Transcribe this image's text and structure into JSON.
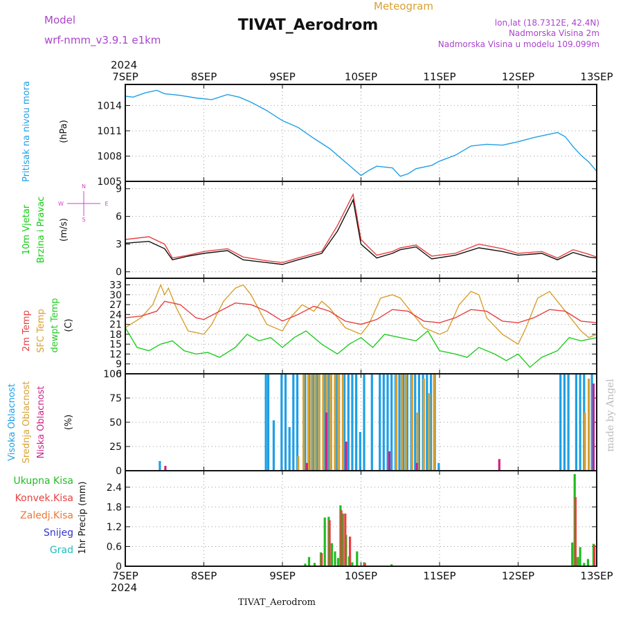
{
  "header": {
    "model_label": "Model",
    "model_name": "wrf-nmm_v3.9.1  e1km",
    "title": "TIVAT_Aerodrom",
    "subtitle": "Meteogram",
    "lonlat": "lon,lat (18.7312E, 42.4N)",
    "elev": "Nadmorska Visina 2m",
    "elev_model": "Nadmorska Visina u modelu 109.099m",
    "watermark": "made by Angel",
    "footer": "TIVAT_Aerodrom"
  },
  "colors": {
    "pressure": "#1e9fe6",
    "wind_label": "#11cc11",
    "wind_dir": "#cc44cc",
    "temp2m": "#e84040",
    "sfc": "#d8a030",
    "dewpt": "#22cc22",
    "high_cloud": "#1e9fe6",
    "mid_cloud": "#d8a030",
    "low_cloud": "#cc2288",
    "total": "#22bb22",
    "conv": "#e84040",
    "frz": "#ee7733",
    "snow": "#3333cc",
    "grad": "#22bbbb",
    "purple": "#aa44cc",
    "watermark": "#bbbbbb"
  },
  "chart_data": {
    "x_axis": {
      "year": "2024",
      "ticks": [
        "7SEP",
        "8SEP",
        "9SEP",
        "10SEP",
        "11SEP",
        "12SEP",
        "13SEP"
      ],
      "range_days": [
        0,
        6
      ]
    },
    "panels": [
      {
        "id": "pressure",
        "type": "line",
        "ylabel": [
          "Pritisak na nivou mora"
        ],
        "unit": "(hPa)",
        "ylim": [
          1005,
          1016.5
        ],
        "yticks": [
          1005,
          1008,
          1011,
          1014
        ],
        "series": [
          {
            "color_key": "pressure",
            "x": [
              0,
              0.1,
              0.25,
              0.4,
              0.5,
              0.7,
              0.9,
              1.1,
              1.3,
              1.45,
              1.6,
              1.8,
              2.0,
              2.2,
              2.4,
              2.6,
              2.8,
              3.0,
              3.1,
              3.2,
              3.4,
              3.5,
              3.6,
              3.7,
              3.9,
              4.0,
              4.2,
              4.4,
              4.6,
              4.8,
              5.0,
              5.2,
              5.4,
              5.5,
              5.6,
              5.7,
              5.8,
              5.9,
              6.0
            ],
            "y": [
              1015.1,
              1015.0,
              1015.5,
              1015.8,
              1015.4,
              1015.2,
              1014.9,
              1014.7,
              1015.3,
              1015.0,
              1014.4,
              1013.4,
              1012.2,
              1011.4,
              1010.1,
              1008.9,
              1007.3,
              1005.7,
              1006.3,
              1006.8,
              1006.6,
              1005.6,
              1005.9,
              1006.5,
              1006.9,
              1007.4,
              1008.1,
              1009.2,
              1009.4,
              1009.3,
              1009.7,
              1010.2,
              1010.6,
              1010.8,
              1010.3,
              1009.1,
              1008.1,
              1007.3,
              1006.2
            ]
          }
        ]
      },
      {
        "id": "wind",
        "type": "line",
        "ylabel": [
          "10m Vjetar",
          "Brzina i Pravac"
        ],
        "unit": "(m/s)",
        "compass": {
          "n": "N",
          "s": "S",
          "e": "E",
          "w": "W"
        },
        "ylim": [
          -0.7,
          9.8
        ],
        "yticks": [
          0,
          3,
          6,
          9
        ],
        "series": [
          {
            "color_key": "temp2m",
            "x": [
              0,
              0.3,
              0.5,
              0.6,
              0.8,
              1.0,
              1.3,
              1.5,
              1.8,
              2.0,
              2.2,
              2.5,
              2.7,
              2.9,
              3.0,
              3.2,
              3.4,
              3.5,
              3.7,
              3.9,
              4.2,
              4.5,
              4.8,
              5.0,
              5.3,
              5.5,
              5.7,
              5.9,
              6.0
            ],
            "y": [
              3.5,
              3.8,
              3.0,
              1.5,
              1.8,
              2.2,
              2.5,
              1.6,
              1.2,
              1.0,
              1.5,
              2.2,
              5.0,
              8.4,
              3.5,
              1.8,
              2.2,
              2.6,
              2.9,
              1.7,
              2.0,
              3.0,
              2.5,
              2.0,
              2.2,
              1.5,
              2.4,
              1.9,
              1.6
            ]
          },
          {
            "color_key": "black",
            "x": [
              0,
              0.3,
              0.5,
              0.6,
              0.8,
              1.0,
              1.3,
              1.5,
              1.8,
              2.0,
              2.2,
              2.5,
              2.7,
              2.9,
              3.0,
              3.2,
              3.4,
              3.5,
              3.7,
              3.9,
              4.2,
              4.5,
              4.8,
              5.0,
              5.3,
              5.5,
              5.7,
              5.9,
              6.0
            ],
            "y": [
              3.1,
              3.3,
              2.5,
              1.3,
              1.7,
              2.0,
              2.3,
              1.3,
              1.0,
              0.8,
              1.3,
              2.0,
              4.4,
              7.8,
              3.0,
              1.5,
              2.0,
              2.4,
              2.7,
              1.4,
              1.8,
              2.6,
              2.2,
              1.8,
              2.0,
              1.3,
              2.1,
              1.6,
              1.5
            ]
          }
        ]
      },
      {
        "id": "temperature",
        "type": "line",
        "ylabel": [
          "2m Temp",
          "SFC Temp",
          "dewpt Temp"
        ],
        "unit": "(C)",
        "ylim": [
          6,
          35
        ],
        "yticks": [
          6,
          9,
          12,
          15,
          18,
          21,
          24,
          27,
          30,
          33
        ],
        "series": [
          {
            "color_key": "sfc",
            "x": [
              0,
              0.1,
              0.2,
              0.35,
              0.45,
              0.5,
              0.55,
              0.65,
              0.8,
              1.0,
              1.1,
              1.25,
              1.4,
              1.5,
              1.6,
              1.8,
              2.0,
              2.1,
              2.25,
              2.4,
              2.5,
              2.6,
              2.8,
              3.0,
              3.1,
              3.25,
              3.4,
              3.5,
              3.6,
              3.8,
              4.0,
              4.1,
              4.25,
              4.4,
              4.5,
              4.6,
              4.8,
              5.0,
              5.1,
              5.25,
              5.4,
              5.5,
              5.6,
              5.8,
              5.9,
              6.0
            ],
            "y": [
              20,
              21.5,
              23,
              27,
              33,
              30,
              32,
              26,
              19,
              18,
              21,
              28,
              32,
              33,
              30,
              21,
              19,
              23,
              27,
              25,
              28,
              26,
              20,
              18,
              21,
              29,
              30,
              29,
              26,
              20,
              18,
              19,
              27,
              31,
              30,
              23,
              18,
              15,
              20,
              29,
              31,
              28,
              25,
              19,
              17,
              18
            ]
          },
          {
            "color_key": "temp2m",
            "x": [
              0,
              0.2,
              0.4,
              0.5,
              0.7,
              0.9,
              1.0,
              1.2,
              1.4,
              1.6,
              1.8,
              2.0,
              2.2,
              2.4,
              2.6,
              2.8,
              3.0,
              3.2,
              3.4,
              3.6,
              3.8,
              4.0,
              4.2,
              4.4,
              4.6,
              4.8,
              5.0,
              5.2,
              5.4,
              5.6,
              5.8,
              6.0
            ],
            "y": [
              23,
              23.5,
              25,
              28,
              27,
              23,
              22.5,
              25,
              27.5,
              27,
              25,
              22,
              24,
              26.5,
              25,
              22,
              21,
              22.5,
              25.5,
              25,
              22,
              21.5,
              23,
              25.5,
              25,
              22,
              21.5,
              23,
              25.5,
              25,
              22,
              21.5
            ]
          },
          {
            "color_key": "dewpt",
            "x": [
              0,
              0.15,
              0.3,
              0.45,
              0.6,
              0.75,
              0.9,
              1.05,
              1.2,
              1.4,
              1.55,
              1.7,
              1.85,
              2.0,
              2.15,
              2.3,
              2.5,
              2.7,
              2.85,
              3.0,
              3.15,
              3.3,
              3.5,
              3.7,
              3.85,
              4.0,
              4.2,
              4.35,
              4.5,
              4.7,
              4.85,
              5.0,
              5.15,
              5.3,
              5.5,
              5.65,
              5.8,
              6.0
            ],
            "y": [
              20,
              14,
              13,
              15,
              16,
              13,
              12,
              12.5,
              11,
              14,
              18,
              16,
              17,
              14,
              17,
              19,
              15,
              12,
              15,
              17,
              14,
              18,
              17,
              16,
              19,
              13,
              12,
              11,
              14,
              12,
              10,
              12,
              8,
              11,
              13,
              17,
              16,
              17
            ]
          }
        ]
      },
      {
        "id": "clouds",
        "type": "bar",
        "ylabel": [
          "Visoka Oblacnost",
          "Srednja Oblacnost",
          "Niska Oblacnost"
        ],
        "unit": "(%)",
        "ylim": [
          0,
          100
        ],
        "yticks": [
          0,
          25,
          50,
          75,
          100
        ],
        "series": [
          {
            "color_key": "high_cloud",
            "x": [
              0.45,
              1.8,
              1.83,
              1.9,
              2.0,
              2.05,
              2.1,
              2.15,
              2.2,
              2.3,
              2.35,
              2.4,
              2.45,
              2.55,
              2.6,
              2.7,
              2.8,
              2.85,
              2.9,
              2.95,
              3.0,
              3.05,
              3.15,
              3.25,
              3.3,
              3.35,
              3.4,
              3.45,
              3.5,
              3.55,
              3.6,
              3.65,
              3.7,
              3.75,
              3.8,
              3.85,
              3.9,
              3.95,
              4.0,
              5.55,
              5.6,
              5.65,
              5.75,
              5.8,
              5.85,
              5.95
            ],
            "y": [
              10,
              100,
              100,
              52,
              100,
              100,
              45,
              100,
              100,
              100,
              100,
              100,
              100,
              100,
              100,
              100,
              100,
              100,
              100,
              100,
              40,
              100,
              100,
              100,
              100,
              100,
              100,
              100,
              100,
              100,
              100,
              100,
              100,
              100,
              100,
              100,
              100,
              100,
              8,
              100,
              100,
              100,
              100,
              100,
              100,
              100
            ]
          },
          {
            "color_key": "mid_cloud",
            "x": [
              2.2,
              2.27,
              2.33,
              2.37,
              2.42,
              2.47,
              2.52,
              2.57,
              2.62,
              2.67,
              2.72,
              2.77,
              3.45,
              3.52,
              3.57,
              3.65,
              3.72,
              3.8,
              3.87,
              3.93,
              5.85,
              5.9
            ],
            "y": [
              15,
              100,
              100,
              100,
              100,
              100,
              100,
              100,
              100,
              100,
              100,
              100,
              100,
              100,
              100,
              100,
              60,
              95,
              80,
              100,
              60,
              95
            ]
          },
          {
            "color_key": "low_cloud",
            "x": [
              0.5,
              2.3,
              2.55,
              2.8,
              3.35,
              3.7,
              4.75,
              5.95
            ],
            "y": [
              5,
              8,
              60,
              30,
              20,
              8,
              12,
              90
            ]
          }
        ]
      },
      {
        "id": "precip",
        "type": "bar",
        "ylabel": [
          "1hr Precip (mm)"
        ],
        "legend": [
          "Ukupna Kisa",
          "Konvek.Kisa",
          "Zaledj.Kisa",
          "Snijeg",
          "Grad"
        ],
        "ylim": [
          0,
          2.9
        ],
        "yticks": [
          0,
          0.6,
          1.2,
          1.8,
          2.4
        ],
        "series": [
          {
            "color_key": "total",
            "x": [
              2.3,
              2.35,
              2.42,
              2.5,
              2.55,
              2.6,
              2.64,
              2.68,
              2.72,
              2.75,
              2.78,
              2.82,
              2.86,
              2.9,
              2.96,
              3.05,
              3.4,
              5.7,
              5.73,
              5.77,
              5.8,
              5.85,
              5.9,
              5.97
            ],
            "y": [
              0.08,
              0.28,
              0.1,
              0.42,
              1.48,
              1.5,
              0.7,
              0.45,
              0.25,
              1.85,
              1.6,
              0.95,
              0.3,
              0.12,
              0.45,
              0.12,
              0.06,
              0.72,
              2.8,
              0.28,
              0.58,
              0.1,
              0.22,
              0.68
            ]
          },
          {
            "color_key": "conv",
            "x": [
              2.5,
              2.6,
              2.75,
              2.8,
              2.86,
              3.05,
              5.73,
              5.97
            ],
            "y": [
              0.4,
              1.4,
              1.7,
              1.6,
              0.9,
              0.1,
              2.1,
              0.65
            ]
          }
        ]
      }
    ]
  }
}
